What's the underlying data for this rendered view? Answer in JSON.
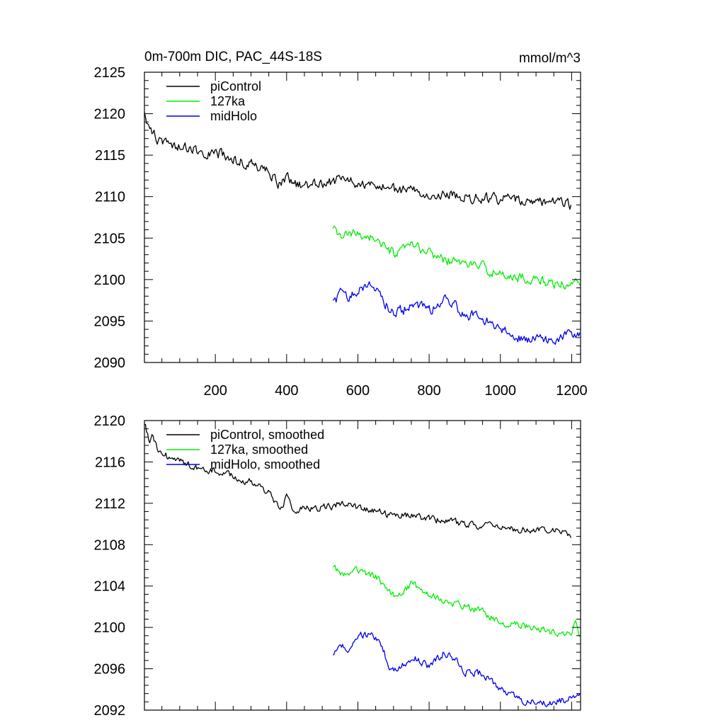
{
  "chart_data": [
    {
      "type": "line",
      "title": "0m-700m DIC, PAC_44S-18S",
      "units": "mmol/m^3",
      "xlim": [
        1,
        1225
      ],
      "ylim": [
        2090,
        2125
      ],
      "xticks": [
        200,
        400,
        600,
        800,
        1000,
        1200
      ],
      "xtick_labels": [
        "200",
        "400",
        "600",
        "800",
        "1000",
        "1200"
      ],
      "yticks": [
        2090,
        2095,
        2100,
        2105,
        2110,
        2115,
        2120,
        2125
      ],
      "ytick_labels": [
        "2090",
        "2095",
        "2100",
        "2105",
        "2110",
        "2115",
        "2120",
        "2125"
      ],
      "legend": {
        "placement": "top-left",
        "entries": [
          "piControl",
          "127ka",
          "midHolo"
        ]
      },
      "series": [
        {
          "name": "piControl",
          "color": "#000000",
          "noise": 0.55,
          "points": [
            [
              1,
              2120
            ],
            [
              20,
              2118
            ],
            [
              40,
              2116.8
            ],
            [
              70,
              2116.5
            ],
            [
              100,
              2116
            ],
            [
              150,
              2115.5
            ],
            [
              200,
              2115.3
            ],
            [
              250,
              2114.5
            ],
            [
              300,
              2114
            ],
            [
              350,
              2113
            ],
            [
              380,
              2111.5
            ],
            [
              400,
              2112.5
            ],
            [
              420,
              2111.5
            ],
            [
              450,
              2111.5
            ],
            [
              500,
              2111.5
            ],
            [
              550,
              2112
            ],
            [
              600,
              2111.5
            ],
            [
              650,
              2111.2
            ],
            [
              700,
              2110.8
            ],
            [
              750,
              2110.8
            ],
            [
              800,
              2110.5
            ],
            [
              850,
              2110.2
            ],
            [
              900,
              2110
            ],
            [
              950,
              2109.8
            ],
            [
              1000,
              2109.7
            ],
            [
              1050,
              2109.5
            ],
            [
              1100,
              2109.3
            ],
            [
              1150,
              2109.3
            ],
            [
              1200,
              2109
            ]
          ]
        },
        {
          "name": "127ka",
          "color": "#00ee00",
          "noise": 0.5,
          "points": [
            [
              530,
              2106
            ],
            [
              550,
              2105.2
            ],
            [
              600,
              2105.5
            ],
            [
              650,
              2105
            ],
            [
              680,
              2103.5
            ],
            [
              710,
              2103
            ],
            [
              750,
              2104.2
            ],
            [
              800,
              2103.2
            ],
            [
              850,
              2102.3
            ],
            [
              900,
              2102
            ],
            [
              950,
              2101.5
            ],
            [
              1000,
              2100.5
            ],
            [
              1050,
              2100.3
            ],
            [
              1100,
              2100
            ],
            [
              1150,
              2099.5
            ],
            [
              1200,
              2099.3
            ],
            [
              1210,
              2100.5
            ],
            [
              1225,
              2098.5
            ]
          ]
        },
        {
          "name": "midHolo",
          "color": "#0000ee",
          "noise": 0.55,
          "points": [
            [
              530,
              2097.3
            ],
            [
              550,
              2098.2
            ],
            [
              580,
              2098
            ],
            [
              610,
              2099.2
            ],
            [
              640,
              2099.3
            ],
            [
              670,
              2098
            ],
            [
              690,
              2096
            ],
            [
              720,
              2096.2
            ],
            [
              760,
              2097
            ],
            [
              800,
              2096.2
            ],
            [
              840,
              2097.5
            ],
            [
              870,
              2097
            ],
            [
              900,
              2095.7
            ],
            [
              950,
              2095.5
            ],
            [
              1000,
              2094
            ],
            [
              1050,
              2093
            ],
            [
              1100,
              2093
            ],
            [
              1150,
              2092.8
            ],
            [
              1200,
              2093.3
            ],
            [
              1225,
              2093.2
            ]
          ]
        }
      ]
    },
    {
      "type": "line",
      "title": "",
      "xlim": [
        1,
        1225
      ],
      "ylim": [
        2092,
        2120
      ],
      "xticks": [
        200,
        400,
        600,
        800,
        1000,
        1200
      ],
      "yticks": [
        2092,
        2096,
        2100,
        2104,
        2108,
        2112,
        2116,
        2120
      ],
      "ytick_labels": [
        "2092",
        "2096",
        "2100",
        "2104",
        "2108",
        "2112",
        "2116",
        "2120"
      ],
      "legend": {
        "placement": "top-left",
        "entries": [
          "piControl, smoothed",
          "127ka, smoothed",
          "midHolo, smoothed"
        ]
      },
      "series": [
        {
          "name": "piControl, smoothed",
          "color": "#000000",
          "noise": 0.3,
          "points": [
            [
              1,
              2119.8
            ],
            [
              15,
              2118
            ],
            [
              25,
              2118.7
            ],
            [
              40,
              2116.8
            ],
            [
              70,
              2116.5
            ],
            [
              100,
              2116
            ],
            [
              150,
              2115.5
            ],
            [
              200,
              2115.2
            ],
            [
              250,
              2114.5
            ],
            [
              300,
              2114
            ],
            [
              350,
              2113
            ],
            [
              380,
              2111.5
            ],
            [
              400,
              2112.5
            ],
            [
              420,
              2111.2
            ],
            [
              450,
              2111.5
            ],
            [
              500,
              2111.5
            ],
            [
              550,
              2112
            ],
            [
              600,
              2111.5
            ],
            [
              650,
              2111.2
            ],
            [
              700,
              2110.8
            ],
            [
              750,
              2110.8
            ],
            [
              800,
              2110.5
            ],
            [
              850,
              2110.2
            ],
            [
              900,
              2110
            ],
            [
              950,
              2109.8
            ],
            [
              1000,
              2109.7
            ],
            [
              1050,
              2109.5
            ],
            [
              1100,
              2109.3
            ],
            [
              1150,
              2109.3
            ],
            [
              1200,
              2109
            ]
          ]
        },
        {
          "name": "127ka, smoothed",
          "color": "#00ee00",
          "noise": 0.3,
          "points": [
            [
              530,
              2106
            ],
            [
              550,
              2105.2
            ],
            [
              600,
              2105.5
            ],
            [
              650,
              2105
            ],
            [
              680,
              2103.5
            ],
            [
              710,
              2103
            ],
            [
              750,
              2104.2
            ],
            [
              800,
              2103.2
            ],
            [
              850,
              2102.3
            ],
            [
              900,
              2102
            ],
            [
              950,
              2101.5
            ],
            [
              1000,
              2100.5
            ],
            [
              1050,
              2100.3
            ],
            [
              1100,
              2100
            ],
            [
              1150,
              2099.5
            ],
            [
              1200,
              2099.3
            ],
            [
              1210,
              2100.5
            ],
            [
              1225,
              2098.7
            ]
          ]
        },
        {
          "name": "midHolo, smoothed",
          "color": "#0000ee",
          "noise": 0.3,
          "points": [
            [
              530,
              2097.5
            ],
            [
              550,
              2098.2
            ],
            [
              580,
              2098
            ],
            [
              610,
              2099.2
            ],
            [
              640,
              2099.3
            ],
            [
              670,
              2098
            ],
            [
              690,
              2096
            ],
            [
              720,
              2096.2
            ],
            [
              760,
              2097
            ],
            [
              800,
              2096.2
            ],
            [
              840,
              2097.5
            ],
            [
              870,
              2097
            ],
            [
              900,
              2095.7
            ],
            [
              950,
              2095.5
            ],
            [
              1000,
              2094
            ],
            [
              1050,
              2093
            ],
            [
              1100,
              2092.8
            ],
            [
              1150,
              2092.6
            ],
            [
              1200,
              2093.3
            ],
            [
              1225,
              2093.2
            ]
          ]
        }
      ]
    }
  ]
}
